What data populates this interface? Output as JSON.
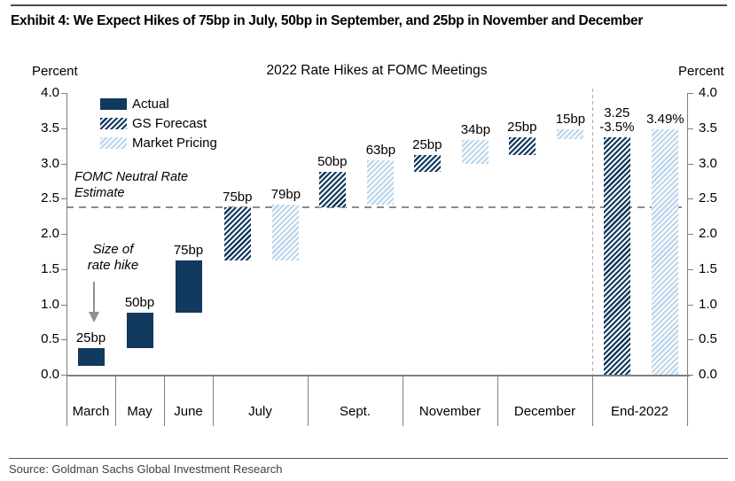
{
  "header": {
    "title": "Exhibit 4: We Expect Hikes of 75bp in July, 50bp in September, and 25bp in November and December"
  },
  "footer": {
    "source": "Source: Goldman Sachs Global Investment Research"
  },
  "colors": {
    "navy": "#12395E",
    "light_blue": "#BCD6EC",
    "axis_gray": "#7F7F7F",
    "dash_gray": "#8C8C8C",
    "separator_gray": "#ABABAB",
    "arrow_gray": "#909090"
  },
  "chart_data": {
    "type": "bar",
    "title": "2022 Rate Hikes at FOMC Meetings",
    "left_axis_caption": "Percent",
    "right_axis_caption": "Percent",
    "ylim": [
      0.0,
      4.0
    ],
    "ytick_step": 0.5,
    "ytick_labels": [
      "0.0",
      "0.5",
      "1.0",
      "1.5",
      "2.0",
      "2.5",
      "3.0",
      "3.5",
      "4.0"
    ],
    "grid": false,
    "legend_position": "top-left",
    "categories": [
      {
        "label": "March",
        "span": 1
      },
      {
        "label": "May",
        "span": 1
      },
      {
        "label": "June",
        "span": 1
      },
      {
        "label": "July",
        "span": 2
      },
      {
        "label": "Sept.",
        "span": 2
      },
      {
        "label": "November",
        "span": 2
      },
      {
        "label": "December",
        "span": 2
      },
      {
        "label": "End-2022",
        "span": 2
      }
    ],
    "series": [
      {
        "id": "actual",
        "name": "Actual",
        "pattern": "solid",
        "color": "#12395E"
      },
      {
        "id": "gs_forecast",
        "name": "GS Forecast",
        "pattern": "hatch",
        "color": "#12395E"
      },
      {
        "id": "market_pricing",
        "name": "Market Pricing",
        "pattern": "hatch",
        "color": "#BCD6EC"
      }
    ],
    "bars": [
      {
        "cat": 0,
        "series": "actual",
        "slot": "center",
        "from": 0.125,
        "to": 0.375,
        "label": "25bp"
      },
      {
        "cat": 1,
        "series": "actual",
        "slot": "center",
        "from": 0.375,
        "to": 0.875,
        "label": "50bp"
      },
      {
        "cat": 2,
        "series": "actual",
        "slot": "center",
        "from": 0.875,
        "to": 1.625,
        "label": "75bp"
      },
      {
        "cat": 3,
        "series": "gs_forecast",
        "slot": "left",
        "from": 1.625,
        "to": 2.375,
        "label": "75bp"
      },
      {
        "cat": 3,
        "series": "market_pricing",
        "slot": "right",
        "from": 1.625,
        "to": 2.42,
        "label": "79bp"
      },
      {
        "cat": 4,
        "series": "gs_forecast",
        "slot": "left",
        "from": 2.375,
        "to": 2.875,
        "label": "50bp"
      },
      {
        "cat": 4,
        "series": "market_pricing",
        "slot": "right",
        "from": 2.42,
        "to": 3.05,
        "label": "63bp"
      },
      {
        "cat": 5,
        "series": "gs_forecast",
        "slot": "left",
        "from": 2.875,
        "to": 3.125,
        "label": "25bp"
      },
      {
        "cat": 5,
        "series": "market_pricing",
        "slot": "right",
        "from": 2.99,
        "to": 3.33,
        "label": "34bp"
      },
      {
        "cat": 6,
        "series": "gs_forecast",
        "slot": "left",
        "from": 3.125,
        "to": 3.375,
        "label": "25bp"
      },
      {
        "cat": 6,
        "series": "market_pricing",
        "slot": "right",
        "from": 3.34,
        "to": 3.49,
        "label": "15bp"
      },
      {
        "cat": 7,
        "series": "gs_forecast",
        "slot": "left",
        "from": 0.0,
        "to": 3.375,
        "label": "3.25\n-3.5%"
      },
      {
        "cat": 7,
        "series": "market_pricing",
        "slot": "right",
        "from": 0.0,
        "to": 3.49,
        "label": "3.49%"
      }
    ],
    "neutral_line": {
      "value": 2.375,
      "label": "FOMC Neutral Rate\nEstimate"
    },
    "separator_before_category_index": 7,
    "annotation": {
      "text": "Size of\nrate hike"
    }
  }
}
